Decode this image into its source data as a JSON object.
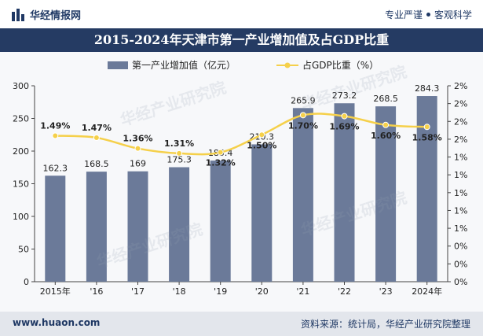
{
  "header": {
    "brand": "华经情报网",
    "slogan_left": "专业严谨",
    "slogan_right": "客观科学",
    "logo_icon": "bar-logo-icon"
  },
  "chart_data": {
    "type": "bar",
    "title": "2015-2024年天津市第一产业增加值及占GDP比重",
    "categories": [
      "2015年",
      "'16",
      "'17",
      "'18",
      "'19",
      "'20",
      "'21",
      "'22",
      "'23",
      "2024年"
    ],
    "series": [
      {
        "name": "第一产业增加值（亿元）",
        "type": "bar",
        "axis": "left",
        "values": [
          162.3,
          168.5,
          169,
          175.3,
          185.4,
          210.3,
          265.9,
          273.2,
          268.5,
          284.3
        ],
        "labels": [
          "162.3",
          "168.5",
          "169",
          "175.3",
          "185.4",
          "210.3",
          "265.9",
          "273.2",
          "268.5",
          "284.3"
        ],
        "color": "#6b7a99"
      },
      {
        "name": "占GDP比重（%）",
        "type": "line",
        "axis": "right",
        "values": [
          1.49,
          1.47,
          1.36,
          1.31,
          1.32,
          1.5,
          1.7,
          1.69,
          1.6,
          1.58
        ],
        "labels": [
          "1.49%",
          "1.47%",
          "1.36%",
          "1.31%",
          "1.32%",
          "1.50%",
          "1.70%",
          "1.69%",
          "1.60%",
          "1.58%"
        ],
        "color": "#f5d04a"
      }
    ],
    "ylim": [
      0,
      300
    ],
    "yticks": [
      "0",
      "50",
      "100",
      "150",
      "200",
      "250",
      "300"
    ],
    "y2lim": [
      0,
      2
    ],
    "y2ticks": [
      "0%",
      "0%",
      "0%",
      "1%",
      "1%",
      "1%",
      "1%",
      "1%",
      "2%",
      "2%",
      "2%",
      "2%"
    ],
    "legend": "top-center",
    "grid": false
  },
  "footer": {
    "website": "www.huaon.com",
    "source": "资料来源：统计局，华经产业研究院整理"
  },
  "watermark": {
    "text1": "华经产业研究院",
    "text2": "www.huaon.com"
  }
}
